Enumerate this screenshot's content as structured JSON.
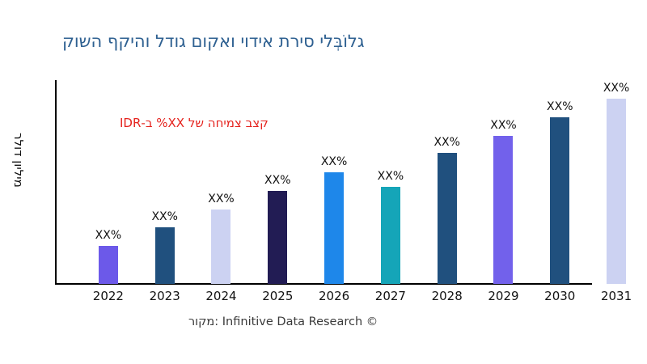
{
  "title": {
    "text": "גלוֹבְּלי סירת אידוי ואקום גודל והיקף השוק",
    "color": "#2e6091"
  },
  "annotation": {
    "text": "קצב צמיחה של XX% ב-IDR",
    "color": "#e5231e"
  },
  "y_axis": {
    "label": "מיליון דולר"
  },
  "footer": {
    "text": "מקור: Infinitive Data Research ©"
  },
  "axis_color": "#000000",
  "chart_data": {
    "type": "bar",
    "title": "גלוֹבְּלי סירת אידוי ואקום גודל והיקף השוק",
    "ylabel": "מיליון דולר",
    "xlabel": "",
    "categories": [
      "2022",
      "2023",
      "2024",
      "2025",
      "2026",
      "2027",
      "2028",
      "2029",
      "2030",
      "2031"
    ],
    "values_relative_height_pct": [
      18.7,
      27.9,
      36.7,
      45.8,
      55.0,
      47.8,
      64.5,
      72.9,
      82.1,
      91.2
    ],
    "bar_value_labels": [
      "XX%",
      "XX%",
      "XX%",
      "XX%",
      "XX%",
      "XX%",
      "XX%",
      "XX%",
      "XX%",
      "XX%"
    ],
    "bar_colors": [
      "#6c59e9",
      "#20507e",
      "#ccd2f2",
      "#221c54",
      "#1e87ea",
      "#15a5b8",
      "#20507e",
      "#7261eb",
      "#20507e",
      "#ccd2f2"
    ],
    "annotation": "קצב צמיחה של XX% ב-IDR",
    "source": "מקור: Infinitive Data Research ©",
    "ylim": [
      0,
      100
    ],
    "grid": false,
    "legend": false
  }
}
